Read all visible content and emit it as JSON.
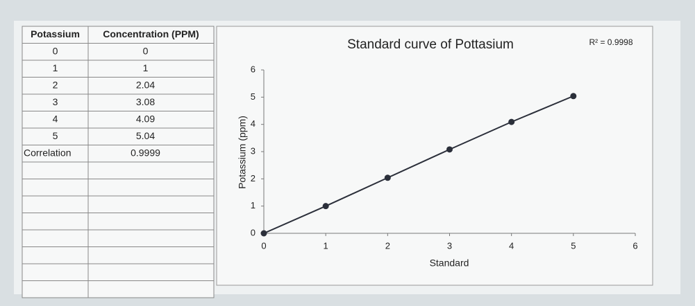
{
  "table": {
    "header": [
      "Potassium",
      "Concentration (PPM)"
    ],
    "rows": [
      [
        "0",
        "0"
      ],
      [
        "1",
        "1"
      ],
      [
        "2",
        "2.04"
      ],
      [
        "3",
        "3.08"
      ],
      [
        "4",
        "4.09"
      ],
      [
        "5",
        "5.04"
      ],
      [
        "Correlation",
        "0.9999"
      ]
    ]
  },
  "chart_data": {
    "type": "scatter",
    "title": "Standard curve of Pottasium",
    "annotation": "R² = 0.9998",
    "x_label": "Standard",
    "y_label": "Potassium (ppm)",
    "x": [
      0,
      1,
      2,
      3,
      4,
      5
    ],
    "values": [
      0,
      1,
      2.04,
      3.08,
      4.09,
      5.04
    ],
    "color": "#2b2f3a",
    "xlim": [
      0,
      6
    ],
    "ylim": [
      0,
      6
    ],
    "xticks": [
      0,
      1,
      2,
      3,
      4,
      5,
      6
    ],
    "yticks": [
      0,
      1,
      2,
      3,
      4,
      5,
      6
    ]
  }
}
